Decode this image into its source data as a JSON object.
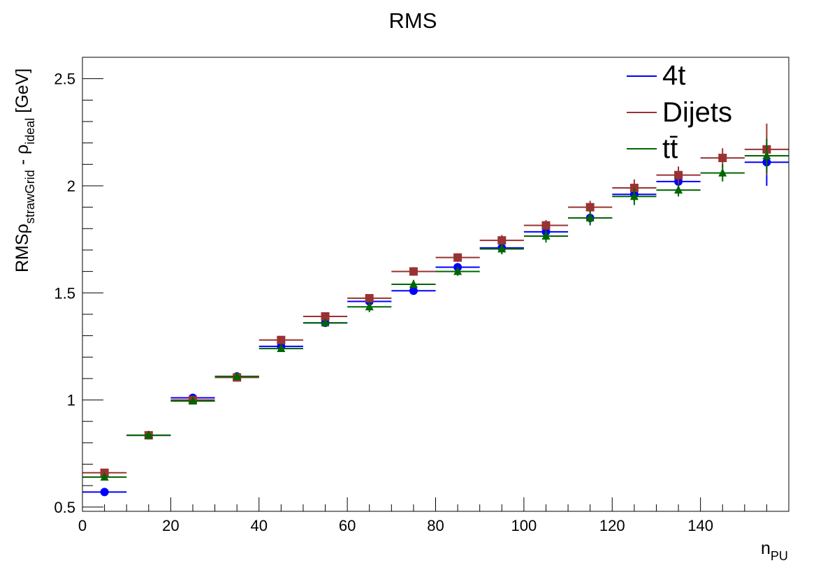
{
  "chart_data": {
    "type": "scatter",
    "title": "RMS",
    "xlabel": "n",
    "xlabel_sub": "PU",
    "ylabel": {
      "prefix": "RMS",
      "rho1": "ρ",
      "sub1": "strawGrid",
      "minus": " - ",
      "rho2": "ρ",
      "sub2": "ideal",
      "unit": " [GeV]"
    },
    "xlim": [
      0,
      160
    ],
    "ylim": [
      0.48,
      2.6
    ],
    "x_ticks": [
      0,
      20,
      40,
      60,
      80,
      100,
      120,
      140
    ],
    "x_tick_labels": [
      "0",
      "20",
      "40",
      "60",
      "80",
      "100",
      "120",
      "140"
    ],
    "y_ticks": [
      0.5,
      1,
      1.5,
      2,
      2.5
    ],
    "y_tick_labels": [
      "0.5",
      "1",
      "1.5",
      "2",
      "2.5"
    ],
    "grid": false,
    "legend_position": "top-right",
    "x": [
      5,
      15,
      25,
      35,
      45,
      55,
      65,
      75,
      85,
      95,
      105,
      115,
      125,
      135,
      145,
      155
    ],
    "x_bin_halfwidth": 5,
    "series": [
      {
        "name": "4t",
        "color": "#0000ff",
        "marker": "circle",
        "values": [
          0.57,
          0.835,
          1.01,
          1.11,
          1.25,
          1.36,
          1.46,
          1.51,
          1.62,
          1.71,
          1.785,
          1.85,
          1.96,
          2.02,
          null,
          2.11
        ],
        "yerr": [
          0.01,
          0.01,
          0.01,
          0.01,
          0.012,
          0.012,
          0.015,
          0.015,
          0.015,
          0.02,
          0.02,
          0.025,
          0.03,
          0.035,
          null,
          0.11
        ]
      },
      {
        "name": "Dijets",
        "color": "#993333",
        "marker": "square",
        "values": [
          0.66,
          0.835,
          1.0,
          1.105,
          1.28,
          1.39,
          1.475,
          1.6,
          1.665,
          1.745,
          1.815,
          1.9,
          1.99,
          2.05,
          2.13,
          2.17
        ],
        "yerr": [
          0.01,
          0.01,
          0.01,
          0.01,
          0.012,
          0.015,
          0.015,
          0.02,
          0.02,
          0.025,
          0.025,
          0.03,
          0.04,
          0.04,
          0.045,
          0.12
        ]
      },
      {
        "name": "tt̄",
        "color": "#006600",
        "marker": "triangle",
        "values": [
          0.64,
          0.835,
          0.995,
          1.11,
          1.24,
          1.36,
          1.435,
          1.54,
          1.6,
          1.705,
          1.765,
          1.85,
          1.95,
          1.98,
          2.06,
          2.14
        ],
        "yerr": [
          0.01,
          0.01,
          0.01,
          0.01,
          0.012,
          0.012,
          0.025,
          0.02,
          0.02,
          0.025,
          0.03,
          0.035,
          0.04,
          0.03,
          0.04,
          0.08
        ]
      }
    ]
  }
}
